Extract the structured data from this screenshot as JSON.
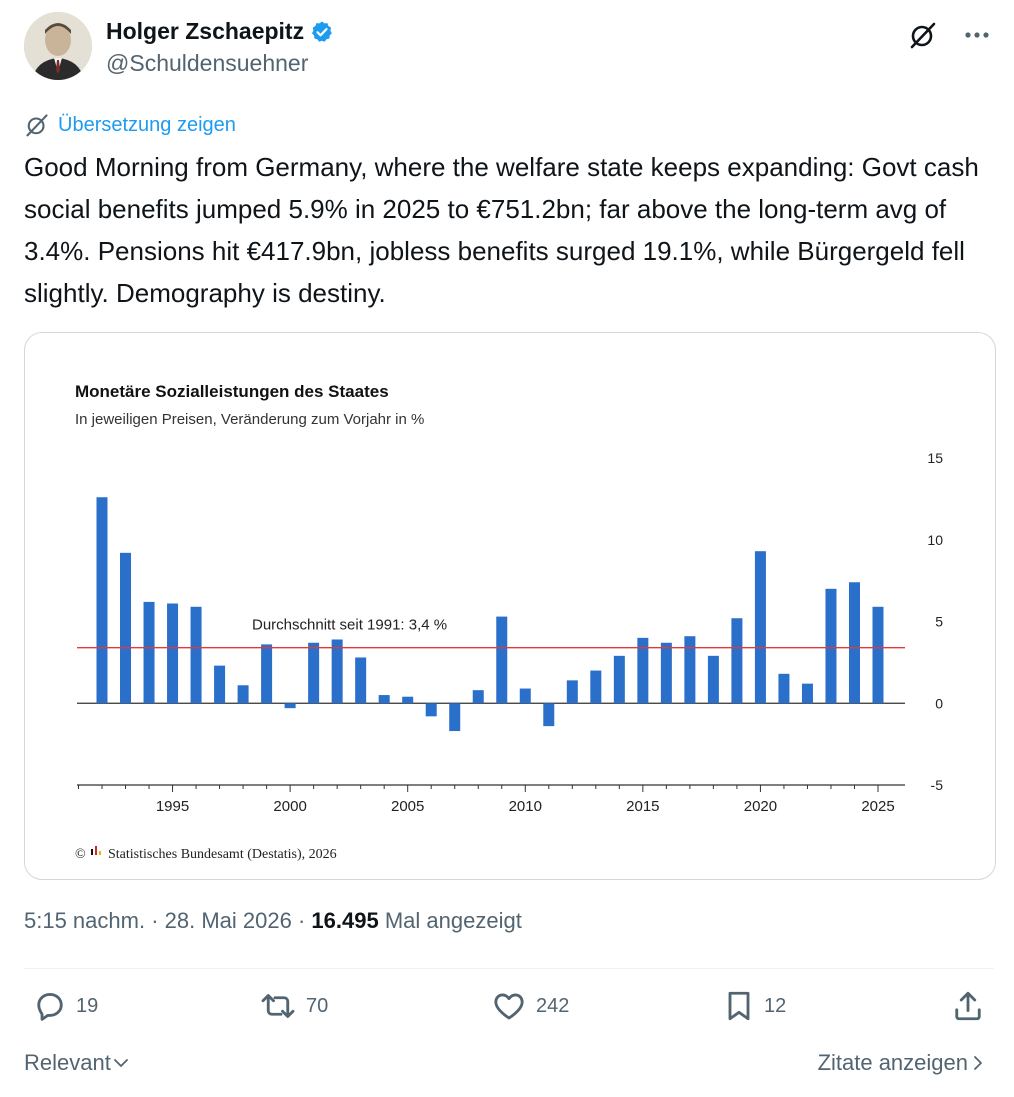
{
  "author": {
    "name": "Holger Zschaepitz",
    "handle": "@Schuldensuehner"
  },
  "translate_label": "Übersetzung zeigen",
  "tweet_text": "Good Morning from Germany, where the welfare state keeps expanding: Govt cash social benefits jumped 5.9% in 2025 to €751.2bn; far above the long-term avg of 3.4%. Pensions hit €417.9bn, jobless benefits surged 19.1%, while Bürgergeld fell slightly. Demography is destiny.",
  "chart_data": {
    "type": "bar",
    "title": "Monetäre Sozialleistungen des Staates",
    "subtitle": "In jeweiligen Preisen, Veränderung zum Vorjahr in %",
    "x": [
      1992,
      1993,
      1994,
      1995,
      1996,
      1997,
      1998,
      1999,
      2000,
      2001,
      2002,
      2003,
      2004,
      2005,
      2006,
      2007,
      2008,
      2009,
      2010,
      2011,
      2012,
      2013,
      2014,
      2015,
      2016,
      2017,
      2018,
      2019,
      2020,
      2021,
      2022,
      2023,
      2024,
      2025
    ],
    "values": [
      12.6,
      9.2,
      6.2,
      6.1,
      5.9,
      2.3,
      1.1,
      3.6,
      -0.3,
      3.7,
      3.9,
      2.8,
      0.5,
      0.4,
      -0.8,
      -1.7,
      0.8,
      5.3,
      0.9,
      -1.4,
      1.4,
      2.0,
      2.9,
      4.0,
      3.7,
      4.1,
      2.9,
      5.2,
      9.3,
      1.8,
      1.2,
      7.0,
      7.4,
      5.9
    ],
    "xticks": [
      "1995",
      "2000",
      "2005",
      "2010",
      "2015",
      "2020",
      "2025"
    ],
    "yticks": [
      "15",
      "10",
      "5",
      "0",
      "-5"
    ],
    "ylim": [
      -5,
      15
    ],
    "average_value": 3.4,
    "average_label": "Durchschnitt seit 1991: 3,4 %",
    "source": "Statistisches Bundesamt (Destatis), 2026",
    "source_prefix": "©",
    "bar_color": "#2a6fc9",
    "average_color": "#e03a3a",
    "grid": false
  },
  "meta": {
    "time": "5:15 nachm.",
    "sep1": " · ",
    "date": "28. Mai 2026",
    "sep2": " · ",
    "views": "16.495",
    "views_label": "Mal angezeigt"
  },
  "actions": {
    "replies": "19",
    "reposts": "70",
    "likes": "242",
    "bookmarks": "12"
  },
  "footer": {
    "sort_label": "Relevant",
    "quotes_label": "Zitate anzeigen"
  },
  "colors": {
    "accent": "#1d9bf0",
    "secondary_text": "#536471"
  }
}
